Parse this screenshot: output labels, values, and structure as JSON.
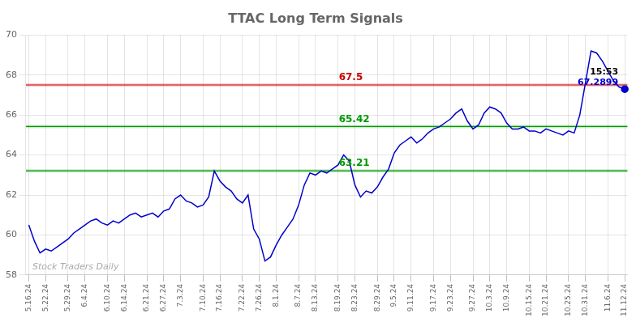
{
  "chart_data": {
    "type": "line",
    "title": "TTAC Long Term Signals",
    "color": "#0000cc",
    "grid": true,
    "ylim": [
      58,
      70
    ],
    "yticks": [
      58,
      60,
      62,
      64,
      66,
      68,
      70
    ],
    "categories": [
      "5.16.24",
      null,
      null,
      "5.22.24",
      null,
      null,
      null,
      "5.29.24",
      null,
      null,
      "6.4.24",
      null,
      null,
      null,
      "6.10.24",
      null,
      null,
      "6.14.24",
      null,
      null,
      null,
      "6.21.24",
      null,
      null,
      "6.27.24",
      null,
      null,
      "7.3.24",
      null,
      null,
      null,
      "7.10.24",
      null,
      null,
      "7.16.24",
      null,
      null,
      null,
      "7.22.24",
      null,
      null,
      "7.26.24",
      null,
      null,
      "8.1.24",
      null,
      null,
      null,
      "8.7.24",
      null,
      null,
      "8.13.24",
      null,
      null,
      null,
      "8.19.24",
      null,
      null,
      "8.23.24",
      null,
      null,
      null,
      "8.29.24",
      null,
      null,
      "9.5.24",
      null,
      null,
      "9.11.24",
      null,
      null,
      null,
      "9.17.24",
      null,
      null,
      "9.23.24",
      null,
      null,
      null,
      "9.27.24",
      null,
      null,
      "10.3.24",
      null,
      null,
      "10.9.24",
      null,
      null,
      null,
      "10.15.24",
      null,
      null,
      "10.21.24",
      null,
      null,
      null,
      "10.25.24",
      null,
      null,
      "10.31.24",
      null,
      null,
      null,
      "11.6.24",
      null,
      null,
      "11.12.24"
    ],
    "values": [
      60.5,
      59.7,
      59.1,
      59.3,
      59.2,
      59.4,
      59.6,
      59.8,
      60.1,
      60.3,
      60.5,
      60.7,
      60.8,
      60.6,
      60.5,
      60.7,
      60.6,
      60.8,
      61.0,
      61.1,
      60.9,
      61.0,
      61.1,
      60.9,
      61.2,
      61.3,
      61.8,
      62.0,
      61.7,
      61.6,
      61.4,
      61.5,
      61.9,
      63.2,
      62.7,
      62.4,
      62.2,
      61.8,
      61.6,
      62.0,
      60.3,
      59.8,
      58.7,
      58.9,
      59.5,
      60.0,
      60.4,
      60.8,
      61.5,
      62.5,
      63.1,
      63.0,
      63.2,
      63.1,
      63.3,
      63.5,
      64.0,
      63.7,
      62.5,
      61.9,
      62.2,
      62.1,
      62.4,
      62.9,
      63.3,
      64.1,
      64.5,
      64.7,
      64.9,
      64.6,
      64.8,
      65.1,
      65.3,
      65.4,
      65.6,
      65.8,
      66.1,
      66.3,
      65.7,
      65.3,
      65.5,
      66.1,
      66.4,
      66.3,
      66.1,
      65.6,
      65.3,
      65.3,
      65.4,
      65.2,
      65.2,
      65.1,
      65.3,
      65.2,
      65.1,
      65.0,
      65.2,
      65.1,
      66.0,
      67.6,
      69.2,
      69.1,
      68.7,
      68.2,
      67.7,
      67.4,
      67.29
    ],
    "annotations": [
      {
        "type": "hline",
        "y": 67.5,
        "text": "67.5",
        "color": "#cc0000"
      },
      {
        "type": "hline",
        "y": 65.42,
        "text": "65.42",
        "color": "#009900"
      },
      {
        "type": "hline",
        "y": 63.21,
        "text": "63.21",
        "color": "#009900"
      },
      {
        "type": "last_point",
        "texts": [
          "15:53",
          "67.2899"
        ]
      },
      {
        "type": "watermark",
        "text": "Stock Traders Daily",
        "color": "#aaaaaa"
      }
    ]
  }
}
